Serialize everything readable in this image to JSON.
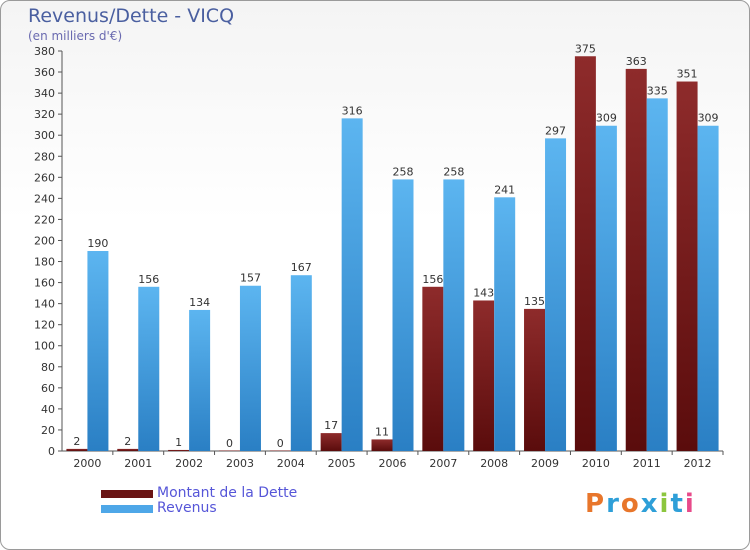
{
  "header": {
    "title": "Revenus/Dette - VICQ",
    "subtitle": "(en milliers d'€)"
  },
  "logo": {
    "text": "Proxiti"
  },
  "colors": {
    "dette": "#7a1c1c",
    "revenus": "#4ea7e8"
  },
  "chart_data": {
    "type": "bar",
    "title": "Revenus/Dette - VICQ",
    "ylabel": "(en milliers d'€)",
    "xlabel": "",
    "ylim": [
      0,
      380
    ],
    "ytick_step": 20,
    "grid": false,
    "legend_position": "bottom-left",
    "categories": [
      "2000",
      "2001",
      "2002",
      "2003",
      "2004",
      "2005",
      "2006",
      "2007",
      "2008",
      "2009",
      "2010",
      "2011",
      "2012"
    ],
    "series": [
      {
        "name": "Montant de la Dette",
        "values": [
          2,
          2,
          1,
          0,
          0,
          17,
          11,
          156,
          143,
          135,
          375,
          363,
          351
        ]
      },
      {
        "name": "Revenus",
        "values": [
          190,
          156,
          134,
          157,
          167,
          316,
          258,
          258,
          241,
          297,
          309,
          335,
          309
        ]
      }
    ]
  }
}
